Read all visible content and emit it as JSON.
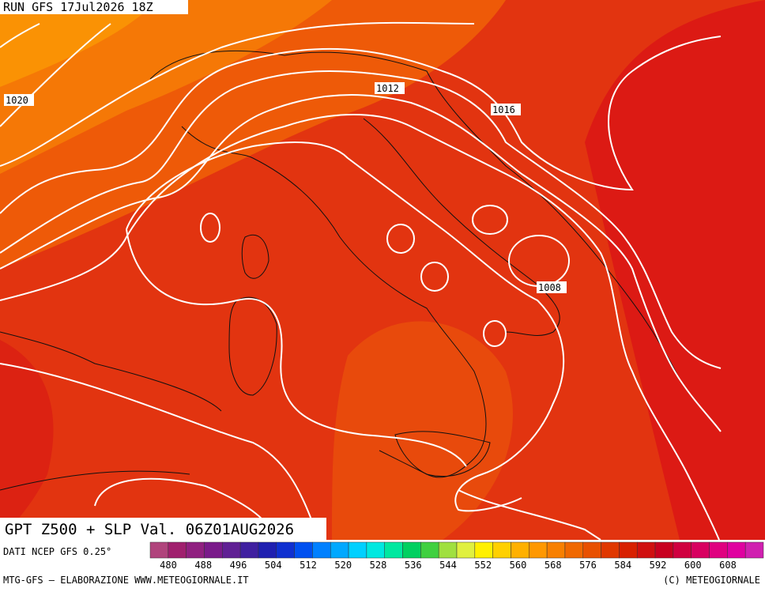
{
  "header": {
    "run": "RUN GFS 17Jul2026 18Z"
  },
  "contour_labels": [
    "1020",
    "1012",
    "1016",
    "1008"
  ],
  "title": "GPT Z500 + SLP Val. 06Z01AUG2026",
  "source": "DATI NCEP GFS 0.25°",
  "colorbar": {
    "ticks": [
      480,
      488,
      496,
      504,
      512,
      520,
      528,
      536,
      544,
      552,
      560,
      568,
      576,
      584,
      592,
      600,
      608
    ],
    "colors": [
      "#b0447c",
      "#a0206e",
      "#902080",
      "#7a1a8a",
      "#602094",
      "#4020a0",
      "#2020b0",
      "#1030d0",
      "#0050f0",
      "#0080ff",
      "#00a8ff",
      "#00d0ff",
      "#00e8e0",
      "#00e8a0",
      "#00d060",
      "#40d040",
      "#a0e040",
      "#e0f040",
      "#fff000",
      "#ffd000",
      "#ffb000",
      "#ff9800",
      "#f88000",
      "#f06800",
      "#e85000",
      "#e03800",
      "#d82000",
      "#d01010",
      "#c80020",
      "#d00040",
      "#d80060",
      "#e00080",
      "#e000a0",
      "#d020b0"
    ]
  },
  "footer": {
    "left": "MTG-GFS — ELABORAZIONE WWW.METEOGIORNALE.IT",
    "right": "(C) METEOGIORNALE"
  }
}
